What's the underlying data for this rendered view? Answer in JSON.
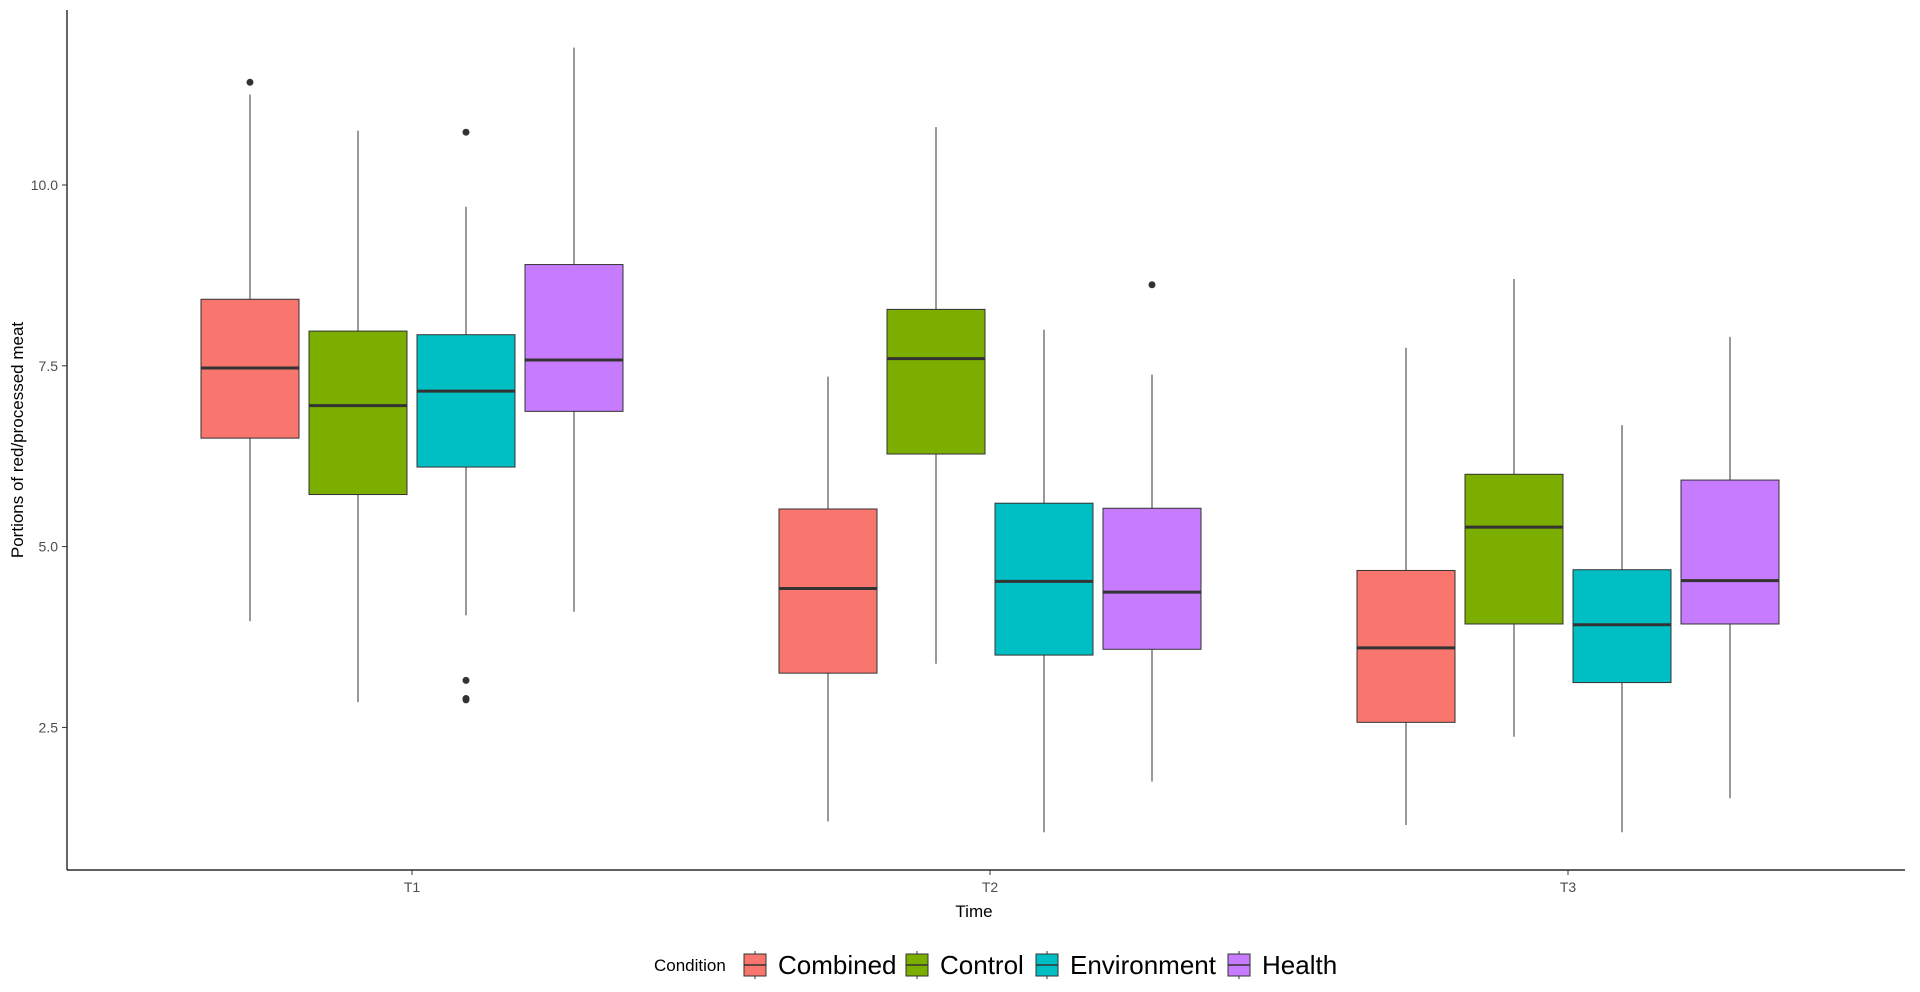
{
  "chart_data": {
    "type": "boxplot",
    "title": "",
    "xlabel": "Time",
    "ylabel": "Portions of red/processed meat",
    "categories": [
      "T1",
      "T2",
      "T3"
    ],
    "yticks": [
      "2.5",
      "5.0",
      "7.5",
      "10.0"
    ],
    "ytick_values": [
      2.5,
      5.0,
      7.5,
      10.0
    ],
    "ylim": [
      0.6,
      12.5
    ],
    "grid": false,
    "legend": {
      "title": "Condition",
      "position": "bottom"
    },
    "series": [
      {
        "name": "Combined",
        "color": "#F8766D",
        "boxes": [
          {
            "min": 3.97,
            "q1": 6.5,
            "median": 7.47,
            "q3": 8.42,
            "max": 11.25,
            "outliers": [
              11.42
            ]
          },
          {
            "min": 1.2,
            "q1": 3.25,
            "median": 4.42,
            "q3": 5.52,
            "max": 7.35,
            "outliers": []
          },
          {
            "min": 1.15,
            "q1": 2.57,
            "median": 3.6,
            "q3": 4.67,
            "max": 7.75,
            "outliers": []
          }
        ]
      },
      {
        "name": "Control",
        "color": "#7CAE00",
        "boxes": [
          {
            "min": 2.85,
            "q1": 5.72,
            "median": 6.95,
            "q3": 7.98,
            "max": 10.75,
            "outliers": []
          },
          {
            "min": 3.38,
            "q1": 6.28,
            "median": 7.6,
            "q3": 8.28,
            "max": 10.8,
            "outliers": []
          },
          {
            "min": 2.37,
            "q1": 3.93,
            "median": 5.27,
            "q3": 6.0,
            "max": 8.7,
            "outliers": []
          }
        ]
      },
      {
        "name": "Environment",
        "color": "#00BFC4",
        "boxes": [
          {
            "min": 4.05,
            "q1": 6.1,
            "median": 7.15,
            "q3": 7.93,
            "max": 9.7,
            "outliers": [
              10.73,
              3.15,
              2.9,
              2.88
            ]
          },
          {
            "min": 1.05,
            "q1": 3.5,
            "median": 4.52,
            "q3": 5.6,
            "max": 8.0,
            "outliers": []
          },
          {
            "min": 1.05,
            "q1": 3.12,
            "median": 3.92,
            "q3": 4.68,
            "max": 6.68,
            "outliers": []
          }
        ]
      },
      {
        "name": "Health",
        "color": "#C77CFF",
        "boxes": [
          {
            "min": 4.1,
            "q1": 6.87,
            "median": 7.58,
            "q3": 8.9,
            "max": 11.9,
            "outliers": []
          },
          {
            "min": 1.75,
            "q1": 3.58,
            "median": 4.37,
            "q3": 5.53,
            "max": 7.38,
            "outliers": [
              8.62
            ]
          },
          {
            "min": 1.52,
            "q1": 3.93,
            "median": 4.53,
            "q3": 5.92,
            "max": 7.9,
            "outliers": []
          }
        ]
      }
    ]
  }
}
